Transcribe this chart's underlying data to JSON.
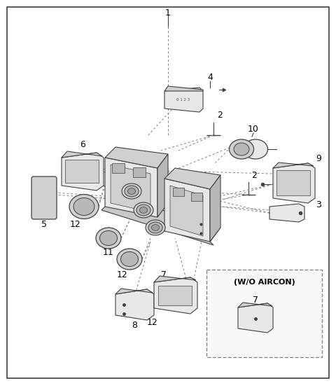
{
  "bg_color": "#ffffff",
  "border_color": "#404040",
  "fig_width": 4.8,
  "fig_height": 5.54,
  "dpi": 100,
  "line_color": "#404040",
  "dashed_color": "#808080",
  "light_fill": "#e8e8e8",
  "mid_fill": "#d0d0d0",
  "dark_fill": "#b8b8b8"
}
